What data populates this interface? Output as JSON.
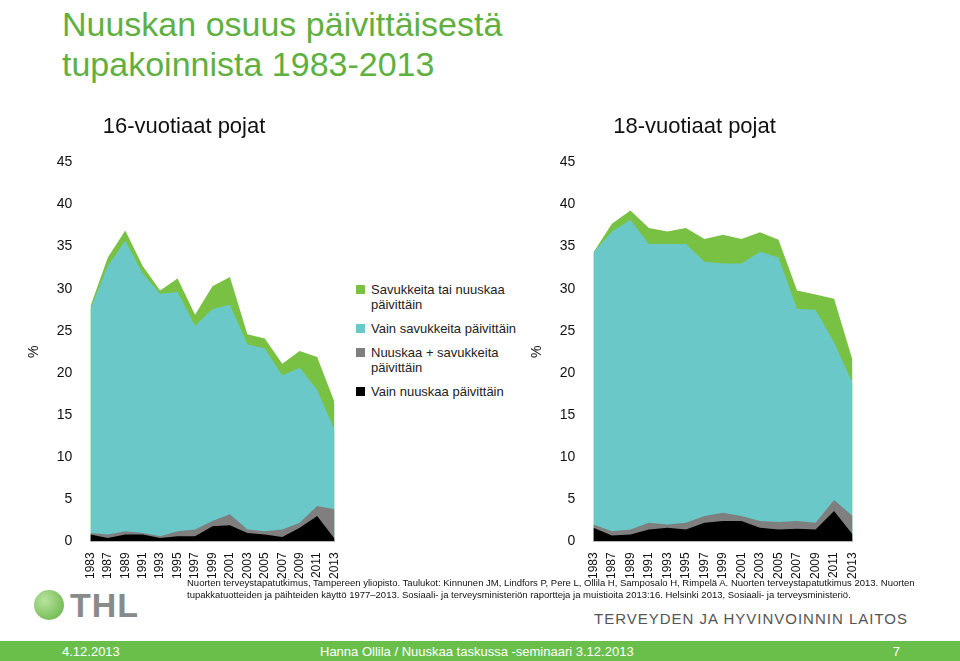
{
  "slide": {
    "title": "Nuuskan osuus päivittäisestä tupakoinnista 1983-2013",
    "source": "Nuorten terveystapatutkimus, Tampereen yliopisto. Taulukot: Kinnunen JM, Lindfors P, Pere L, Ollila H, Samposalo H, Rimpelä A. Nuorten terveystapatutkimus 2013. Nuorten tupakkatuotteiden ja päihteiden käyttö 1977–2013. Sosiaali- ja terveysministeriön raportteja ja muistioita 2013:16. Helsinki 2013, Sosiaali- ja terveysministeriö.",
    "logo": "THL",
    "institute": "TERVEYDEN JA HYVINVOINNIN LAITOS",
    "footer": {
      "date": "4.12.2013",
      "event": "Hanna Ollila / Nuuskaa taskussa -seminaari 3.12.2013",
      "page": "7"
    }
  },
  "chart_data": [
    {
      "type": "area",
      "title": "16-vuotiaat pojat",
      "y_label": "%",
      "categories": [
        "1983",
        "1987",
        "1989",
        "1991",
        "1993",
        "1995",
        "1997",
        "1999",
        "2001",
        "2003",
        "2005",
        "2007",
        "2009",
        "2011",
        "2013"
      ],
      "series": [
        {
          "name": "Savukkeita tai nuuskaa päivittäin",
          "color": "#78c142",
          "values": [
            27.9,
            33.7,
            36.9,
            32.7,
            29.8,
            31.2,
            26.9,
            30.3,
            31.4,
            24.6,
            24.1,
            21.1,
            22.6,
            21.9,
            16.5
          ]
        },
        {
          "name": "Vain savukkeita päivittäin",
          "color": "#6ac8c8",
          "values": [
            27.6,
            32.7,
            35.7,
            31.8,
            29.4,
            29.6,
            25.6,
            27.6,
            28.1,
            23.4,
            22.9,
            19.7,
            20.6,
            18.0,
            13.2
          ]
        },
        {
          "name": "Nuuskaa + savukkeita päivittäin",
          "color": "#7f7f7f",
          "values": [
            1.0,
            0.8,
            1.2,
            1.0,
            0.6,
            1.2,
            1.4,
            2.4,
            3.2,
            1.4,
            1.2,
            1.4,
            2.2,
            4.2,
            3.8
          ]
        },
        {
          "name": "Vain nuuskaa päivittäin",
          "color": "#000000",
          "values": [
            0.8,
            0.4,
            0.8,
            0.8,
            0.4,
            0.6,
            0.6,
            1.8,
            1.9,
            1.0,
            0.8,
            0.5,
            1.6,
            3.0,
            0.3
          ]
        }
      ],
      "ylim": [
        0,
        45
      ],
      "yticks": [
        0,
        5,
        10,
        15,
        20,
        25,
        30,
        35,
        40,
        45
      ],
      "grid": false,
      "legend": "right"
    },
    {
      "type": "area",
      "title": "18-vuotiaat pojat",
      "y_label": "%",
      "categories": [
        "1983",
        "1987",
        "1989",
        "1991",
        "1993",
        "1995",
        "1997",
        "1999",
        "2001",
        "2003",
        "2005",
        "2007",
        "2009",
        "2011",
        "2013"
      ],
      "series": [
        {
          "name": "Savukkeita tai nuuskaa päivittäin",
          "color": "#78c142",
          "values": [
            34.3,
            37.7,
            39.3,
            37.2,
            36.8,
            37.2,
            35.9,
            36.4,
            35.9,
            36.7,
            35.8,
            29.8,
            29.3,
            28.8,
            21.5
          ]
        },
        {
          "name": "Vain savukkeita päivittäin",
          "color": "#6ac8c8",
          "values": [
            34.3,
            36.8,
            38.2,
            35.3,
            35.3,
            35.3,
            33.2,
            33.0,
            33.0,
            34.4,
            33.7,
            27.6,
            27.5,
            23.6,
            18.8
          ]
        },
        {
          "name": "Nuuskaa + savukkeita päivittäin",
          "color": "#7f7f7f",
          "values": [
            2.0,
            1.2,
            1.4,
            2.2,
            2.0,
            2.2,
            3.0,
            3.4,
            3.0,
            2.4,
            2.3,
            2.4,
            2.2,
            4.9,
            3.0
          ]
        },
        {
          "name": "Vain nuuskaa päivittäin",
          "color": "#000000",
          "values": [
            1.6,
            0.7,
            0.8,
            1.4,
            1.6,
            1.4,
            2.2,
            2.4,
            2.4,
            1.6,
            1.4,
            1.5,
            1.4,
            3.6,
            0.8
          ]
        }
      ],
      "ylim": [
        0,
        45
      ],
      "yticks": [
        0,
        5,
        10,
        15,
        20,
        25,
        30,
        35,
        40,
        45
      ],
      "grid": false
    }
  ]
}
